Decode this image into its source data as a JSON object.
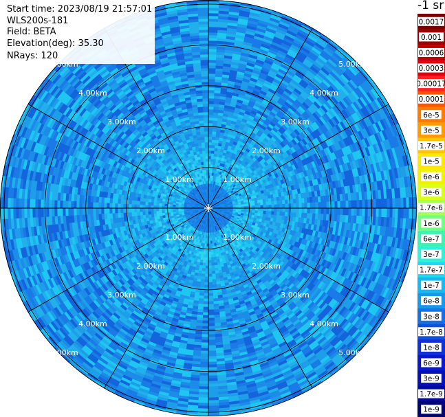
{
  "info": {
    "start_time": "Start time: 2023/08/19 21:57:01",
    "instrument": "WLS200s-181",
    "field": "Field: BETA",
    "elevation": "Elevation(deg): 35.30",
    "nrays": "NRays: 120"
  },
  "map": {
    "type": "polar PPI scan",
    "range_rings_km": [
      1.0,
      2.0,
      3.0,
      4.0,
      5.0
    ],
    "range_ring_labels": [
      "1.00km",
      "2.00km",
      "3.00km",
      "4.00km",
      "5.00km"
    ],
    "max_range_km": 5.1,
    "radial_lines_deg": [
      0,
      30,
      60,
      90,
      120,
      150,
      180,
      210,
      240,
      270,
      300,
      330
    ],
    "colors": {
      "inner_core": "#2c7be8",
      "inner_halo": "#1fc6f2",
      "mid_field": "#1c9ee8",
      "outer_field": "#1a8ae6",
      "grid": "#000000"
    }
  },
  "colorbar": {
    "unit_title": "-1 sr",
    "labels": [
      "0.0017",
      "0.001",
      "0.0006",
      "0.0003",
      "0.00017",
      "0.0001",
      "6e-5",
      "3e-5",
      "1.7e-5",
      "1e-5",
      "6e-6",
      "3e-6",
      "1.7e-6",
      "1e-6",
      "6e-7",
      "3e-7",
      "1.7e-7",
      "1e-7",
      "6e-8",
      "3e-8",
      "1.7e-8",
      "1e-8",
      "6e-9",
      "3e-9",
      "1.7e-9",
      "1e-9"
    ],
    "colors": [
      "#7a0000",
      "#9b0000",
      "#c00000",
      "#e00010",
      "#ff2222",
      "#ff5500",
      "#ff7a00",
      "#ff9a00",
      "#ffc400",
      "#ffe800",
      "#f2f200",
      "#d8ff1a",
      "#a8ff55",
      "#70ff80",
      "#40f0b0",
      "#30f0d8",
      "#20d8f0",
      "#18b8f0",
      "#1898ec",
      "#1870e4",
      "#1450dc",
      "#1030d8",
      "#0818cc",
      "#0410b8",
      "#02089a",
      "#00046e"
    ]
  }
}
